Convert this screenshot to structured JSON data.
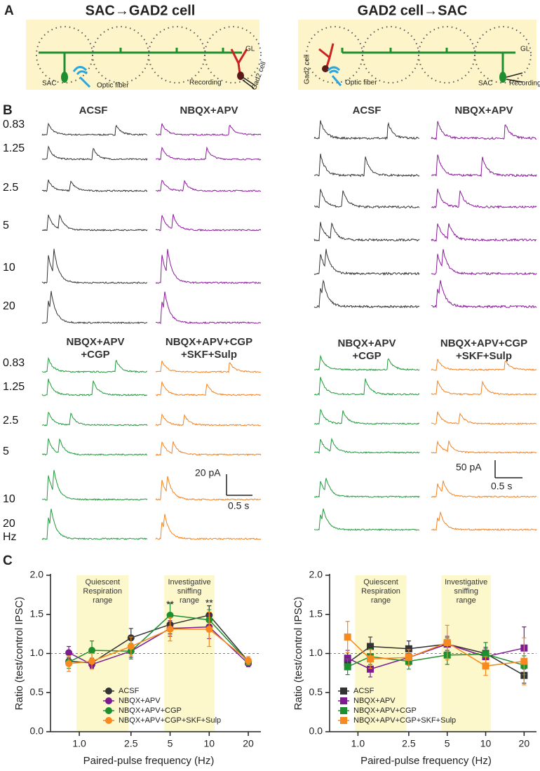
{
  "panel_letters": [
    "A",
    "B",
    "C"
  ],
  "schematics": [
    {
      "title": "SAC→GAD2 cell",
      "labels": [
        "GL",
        "SAC",
        "Optic fiber",
        "Recording",
        "Gad2 cell"
      ]
    },
    {
      "title": "GAD2 cell→SAC",
      "labels": [
        "GL",
        "Gad2 cell",
        "Optic fiber",
        "SAC",
        "Recording"
      ]
    }
  ],
  "traces": [
    {
      "conditions": [
        [
          "ACSF"
        ],
        [
          "NBQX+APV"
        ],
        [
          "NBQX+APV",
          "+CGP"
        ],
        [
          "NBQX+APV+CGP",
          "+SKF+Sulp"
        ]
      ],
      "scale_bar": [
        "20 pA",
        "0.5 s"
      ]
    },
    {
      "conditions": [
        [
          "ACSF"
        ],
        [
          "NBQX+APV"
        ],
        [
          "NBQX+APV",
          "+CGP"
        ],
        [
          "NBQX+APV+CGP",
          "+SKF+Sulp"
        ]
      ],
      "scale_bar": [
        "50 pA",
        "0.5 s"
      ]
    }
  ],
  "frequency_labels": {
    "top": [
      "0.83",
      "1.25",
      "2.5",
      "5",
      "10",
      "20"
    ],
    "bottom": [
      "0.83",
      "1.25",
      "2.5",
      "5",
      "10",
      "20",
      "Hz"
    ]
  },
  "chart_data": [
    {
      "type": "line",
      "x_label": "Paired-pulse frequency (Hz)",
      "y_label": "Ratio (test/control IPSC)",
      "xscale": "log",
      "xlim": [
        0.6,
        25
      ],
      "ylim": [
        0,
        2
      ],
      "xticks": [
        {
          "value": 1,
          "label": "1.0"
        },
        2.5,
        5,
        10,
        20
      ],
      "yticks": [
        {
          "value": 0,
          "label": "0.0"
        },
        0.5,
        {
          "value": 1,
          "label": "1.0"
        },
        1.5,
        {
          "value": 2,
          "label": "2.0"
        }
      ],
      "reference_line": 1,
      "bands": [
        {
          "label": [
            "Quiescent",
            "Respiration",
            "range"
          ],
          "range": [
            0.95,
            2.4
          ]
        },
        {
          "label": [
            "Investigative",
            "sniffing",
            "range"
          ],
          "range": [
            4.5,
            11
          ]
        }
      ],
      "annotations": [
        {
          "text": "**",
          "x": 5,
          "y": 1.62
        },
        {
          "text": "**",
          "x": 10,
          "y": 1.64
        }
      ],
      "marker": "circle",
      "legend": "lower center",
      "x": [
        0.83,
        1.25,
        2.5,
        5,
        10,
        20
      ],
      "series": [
        {
          "name": "ACSF",
          "color": "#333333",
          "values": [
            0.9,
            0.88,
            1.2,
            1.37,
            1.49,
            0.9
          ],
          "errors": [
            0.05,
            0.06,
            0.12,
            0.12,
            0.12,
            0.04
          ]
        },
        {
          "name": "NBQX+APV",
          "color": "#7d1b91",
          "values": [
            1.01,
            0.86,
            1.03,
            1.32,
            1.34,
            0.87
          ],
          "errors": [
            0.08,
            0.05,
            0.08,
            0.1,
            0.15,
            0.04
          ]
        },
        {
          "name": "NBQX+APV+CGP",
          "color": "#1e8f2e",
          "values": [
            0.89,
            1.04,
            1.03,
            1.49,
            1.43,
            0.89
          ],
          "errors": [
            0.08,
            0.12,
            0.1,
            0.15,
            0.13,
            0.05
          ]
        },
        {
          "name": "NBQX+APV+CGP+SKF+Sulp",
          "color": "#f7891f",
          "values": [
            0.87,
            0.9,
            1.09,
            1.31,
            1.31,
            0.91
          ],
          "errors": [
            0.1,
            0.1,
            0.12,
            0.15,
            0.22,
            0.05
          ]
        }
      ]
    },
    {
      "type": "line",
      "x_label": "Paired-pulse frequency (Hz)",
      "y_label": "Ratio (test/control IPSC)",
      "xscale": "log",
      "xlim": [
        0.6,
        25
      ],
      "ylim": [
        0,
        2
      ],
      "xticks": [
        {
          "value": 1,
          "label": "1.0"
        },
        2.5,
        5,
        10,
        20
      ],
      "yticks": [
        {
          "value": 0,
          "label": "0.0"
        },
        0.5,
        {
          "value": 1,
          "label": "1.0"
        },
        1.5,
        {
          "value": 2,
          "label": "2.0"
        }
      ],
      "reference_line": 1,
      "bands": [
        {
          "label": [
            "Quiescent",
            "Respiration",
            "range"
          ],
          "range": [
            0.95,
            2.4
          ]
        },
        {
          "label": [
            "Investigative",
            "sniffing",
            "range"
          ],
          "range": [
            4.5,
            11
          ]
        }
      ],
      "annotations": [],
      "marker": "square",
      "legend": "lower left",
      "x": [
        0.83,
        1.25,
        2.5,
        5,
        10,
        20
      ],
      "series": [
        {
          "name": "ACSF",
          "color": "#333333",
          "values": [
            0.88,
            1.09,
            1.06,
            1.12,
            1.0,
            0.72
          ],
          "errors": [
            0.08,
            0.12,
            0.1,
            0.08,
            0.08,
            0.1
          ]
        },
        {
          "name": "NBQX+APV",
          "color": "#7d1b91",
          "values": [
            0.94,
            0.8,
            0.95,
            1.12,
            0.96,
            1.07
          ],
          "errors": [
            0.1,
            0.1,
            0.1,
            0.1,
            0.1,
            0.27
          ]
        },
        {
          "name": "NBQX+APV+CGP",
          "color": "#1e8f2e",
          "values": [
            0.83,
            0.96,
            0.9,
            0.98,
            0.99,
            0.85
          ],
          "errors": [
            0.1,
            0.1,
            0.1,
            0.12,
            0.15,
            0.12
          ]
        },
        {
          "name": "NBQX+APV+CGP+SKF+Sulp",
          "color": "#f7891f",
          "values": [
            1.21,
            0.93,
            0.95,
            1.14,
            0.84,
            0.9
          ],
          "errors": [
            0.2,
            0.12,
            0.1,
            0.22,
            0.12,
            0.3
          ]
        }
      ]
    }
  ]
}
